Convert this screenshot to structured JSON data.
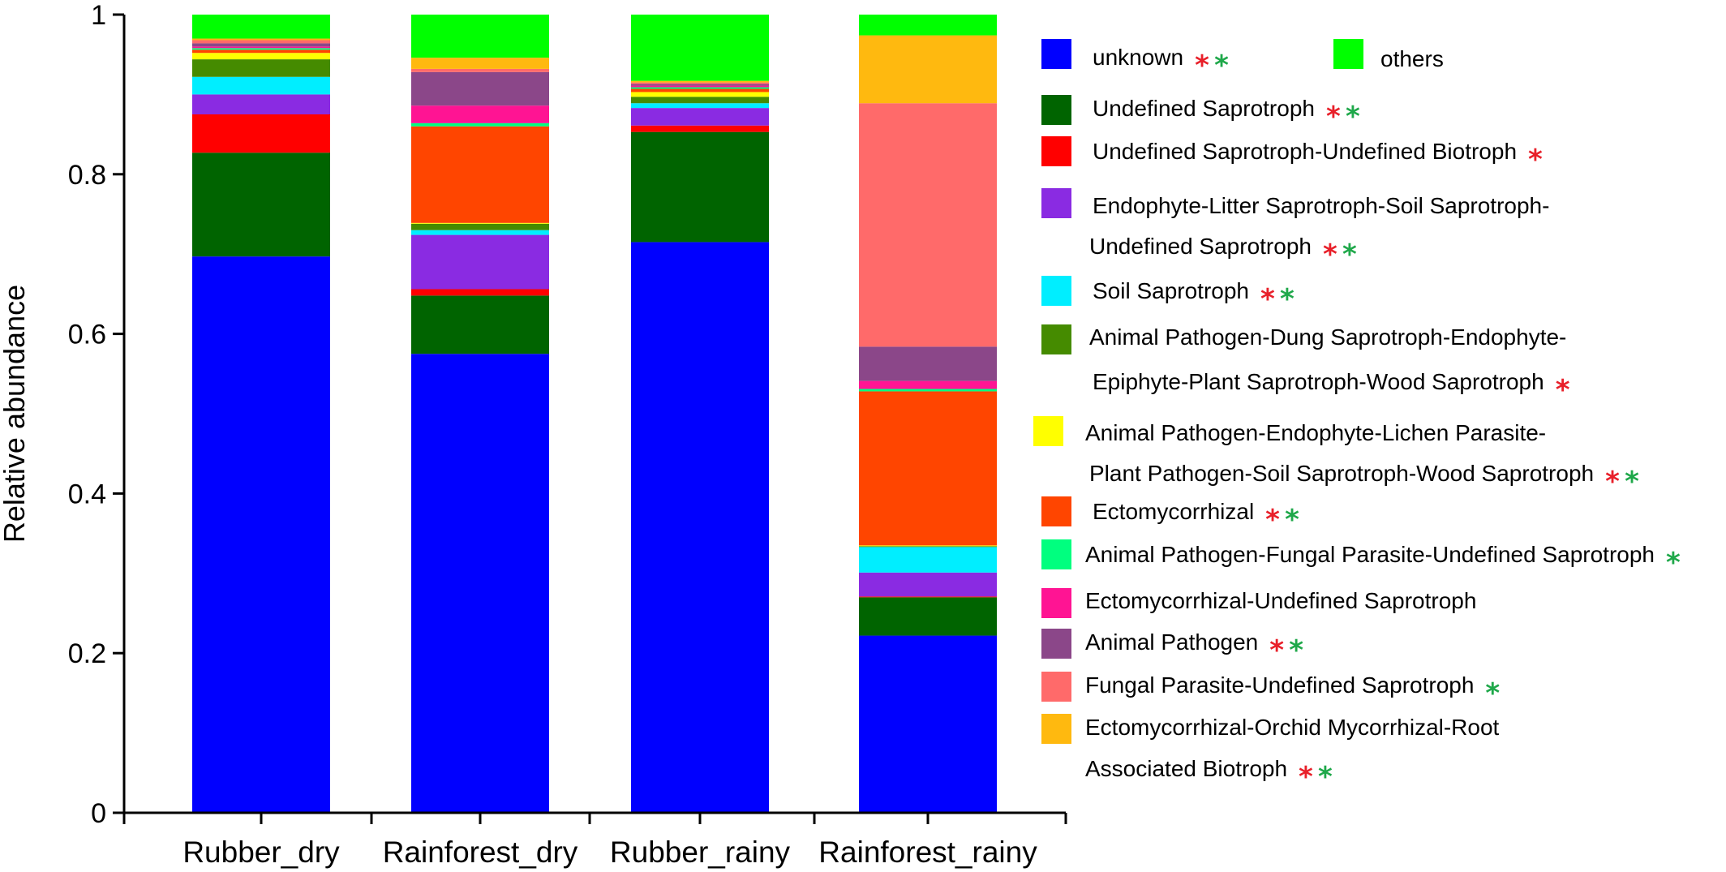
{
  "chart_data": {
    "type": "bar",
    "stacked": true,
    "ylabel": "Relative abundance",
    "xlabel": "",
    "ylim": [
      0,
      1
    ],
    "yticks": [
      "0",
      "0.2",
      "0.4",
      "0.6",
      "0.8",
      "1"
    ],
    "categories": [
      "Rubber_dry",
      "Rainforest_dry",
      "Rubber_rainy",
      "Rainforest_rainy"
    ],
    "legend_position": "right",
    "significance_colors": {
      "red": "#e8202a",
      "green": "#1fa84a"
    },
    "series": [
      {
        "name": "unknown",
        "color": "#0000ff",
        "values": [
          0.697,
          0.575,
          0.715,
          0.222
        ],
        "stars": [
          "red",
          "green"
        ]
      },
      {
        "name": "Undefined Saprotroph",
        "color": "#006400",
        "values": [
          0.13,
          0.073,
          0.138,
          0.048
        ],
        "stars": [
          "red",
          "green"
        ]
      },
      {
        "name": "Undefined Saprotroph-Undefined Biotroph",
        "color": "#ff0000",
        "values": [
          0.048,
          0.008,
          0.008,
          0.001
        ],
        "stars": [
          "red"
        ]
      },
      {
        "name": "Endophyte-Litter Saprotroph-Soil Saprotroph-Undefined Saprotroph",
        "color": "#8a2be2",
        "values": [
          0.025,
          0.068,
          0.022,
          0.03
        ],
        "stars": [
          "red",
          "green"
        ]
      },
      {
        "name": "Soil Saprotroph",
        "color": "#00eeff",
        "values": [
          0.022,
          0.006,
          0.006,
          0.032
        ],
        "stars": [
          "red",
          "green"
        ]
      },
      {
        "name": "Animal Pathogen-Dung Saprotroph-Endophyte-Epiphyte-Plant Saprotroph-Wood Saprotroph",
        "color": "#458b00",
        "values": [
          0.022,
          0.008,
          0.008,
          0.001
        ],
        "stars": [
          "red"
        ]
      },
      {
        "name": "Animal Pathogen-Endophyte-Lichen Parasite-Plant Pathogen-Soil Saprotroph-Wood Saprotroph",
        "color": "#ffff00",
        "values": [
          0.008,
          0.001,
          0.006,
          0.001
        ],
        "stars": [
          "red",
          "green"
        ]
      },
      {
        "name": "Ectomycorrhizal",
        "color": "#ff4500",
        "values": [
          0.004,
          0.121,
          0.004,
          0.193
        ],
        "stars": [
          "red",
          "green"
        ]
      },
      {
        "name": "Animal Pathogen-Fungal Parasite-Undefined Saprotroph",
        "color": "#00ff7f",
        "values": [
          0.002,
          0.004,
          0.002,
          0.003
        ],
        "stars": [
          "green"
        ]
      },
      {
        "name": "Ectomycorrhizal-Undefined Saprotroph",
        "color": "#ff1493",
        "values": [
          0.002,
          0.022,
          0.002,
          0.01
        ],
        "stars": []
      },
      {
        "name": "Animal Pathogen",
        "color": "#8b4789",
        "values": [
          0.004,
          0.042,
          0.002,
          0.043
        ],
        "stars": [
          "red",
          "green"
        ]
      },
      {
        "name": "Fungal Parasite-Undefined Saprotroph",
        "color": "#ff6a6a",
        "values": [
          0.004,
          0.004,
          0.002,
          0.305
        ],
        "stars": [
          "green"
        ]
      },
      {
        "name": "Ectomycorrhizal-Orchid Mycorrhizal-Root Associated Biotroph",
        "color": "#ffb90f",
        "values": [
          0.002,
          0.014,
          0.002,
          0.085
        ],
        "stars": [
          "red",
          "green"
        ]
      },
      {
        "name": "others",
        "color": "#00ff00",
        "values": [
          0.03,
          0.054,
          0.083,
          0.026
        ],
        "stars": []
      }
    ],
    "legend": [
      {
        "label_lines": [
          "unknown"
        ],
        "series": 0,
        "stars": [
          "red",
          "green"
        ]
      },
      {
        "label_lines": [
          "others"
        ],
        "series": 13,
        "stars": []
      },
      {
        "label_lines": [
          "Undefined Saprotroph"
        ],
        "series": 1,
        "stars": [
          "red",
          "green"
        ]
      },
      {
        "label_lines": [
          "Undefined Saprotroph-Undefined Biotroph"
        ],
        "series": 2,
        "stars": [
          "red"
        ]
      },
      {
        "label_lines": [
          "Endophyte-Litter Saprotroph-Soil Saprotroph-",
          "Undefined Saprotroph"
        ],
        "series": 3,
        "stars": [
          "red",
          "green"
        ]
      },
      {
        "label_lines": [
          "Soil Saprotroph"
        ],
        "series": 4,
        "stars": [
          "red",
          "green"
        ]
      },
      {
        "label_lines": [
          "Animal Pathogen-Dung Saprotroph-Endophyte-",
          "Epiphyte-Plant Saprotroph-Wood Saprotroph"
        ],
        "series": 5,
        "stars": [
          "red"
        ]
      },
      {
        "label_lines": [
          "Animal Pathogen-Endophyte-Lichen Parasite-",
          "Plant Pathogen-Soil Saprotroph-Wood Saprotroph"
        ],
        "series": 6,
        "stars": [
          "red",
          "green"
        ]
      },
      {
        "label_lines": [
          "Ectomycorrhizal"
        ],
        "series": 7,
        "stars": [
          "red",
          "green"
        ]
      },
      {
        "label_lines": [
          "Animal Pathogen-Fungal Parasite-Undefined Saprotroph"
        ],
        "series": 8,
        "stars": [
          "green"
        ]
      },
      {
        "label_lines": [
          "Ectomycorrhizal-Undefined Saprotroph"
        ],
        "series": 9,
        "stars": []
      },
      {
        "label_lines": [
          "Animal Pathogen"
        ],
        "series": 10,
        "stars": [
          "red",
          "green"
        ]
      },
      {
        "label_lines": [
          "Fungal Parasite-Undefined Saprotroph"
        ],
        "series": 11,
        "stars": [
          "green"
        ]
      },
      {
        "label_lines": [
          "Ectomycorrhizal-Orchid Mycorrhizal-Root",
          "Associated Biotroph"
        ],
        "series": 12,
        "stars": [
          "red",
          "green"
        ]
      }
    ]
  }
}
